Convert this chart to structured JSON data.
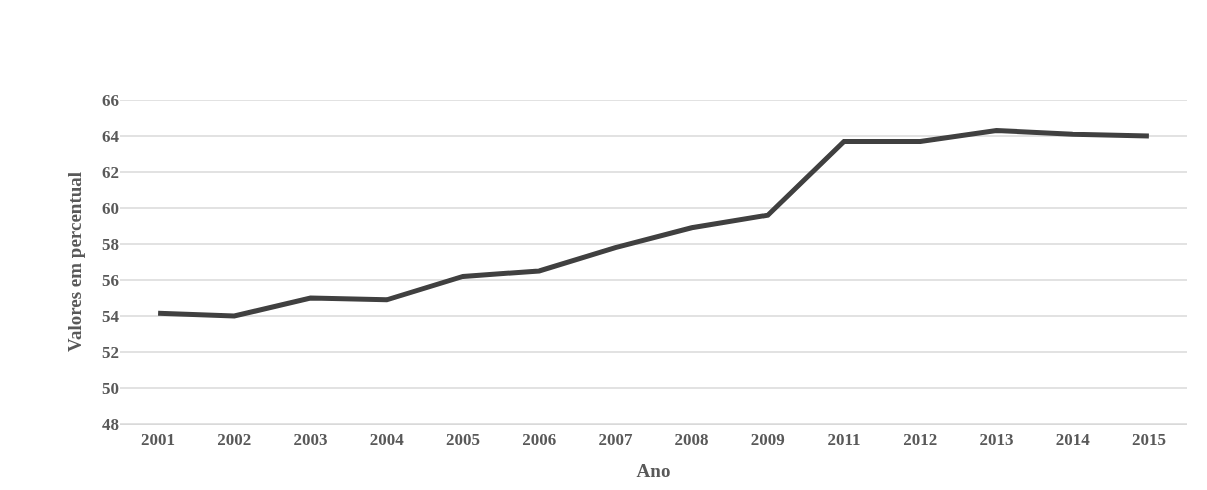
{
  "chart_data": {
    "type": "line",
    "xlabel": "Ano",
    "ylabel": "Valores em percentual",
    "categories": [
      "2001",
      "2002",
      "2003",
      "2004",
      "2005",
      "2006",
      "2007",
      "2008",
      "2009",
      "2011",
      "2012",
      "2013",
      "2014",
      "2015"
    ],
    "series": [
      {
        "color": "#404040",
        "values": [
          54.15,
          54.0,
          55.0,
          54.9,
          56.2,
          56.5,
          57.8,
          58.9,
          59.6,
          63.7,
          63.7,
          64.3,
          64.1,
          64.0
        ]
      }
    ],
    "ylim": [
      48,
      66
    ],
    "yticks": [
      48,
      50,
      52,
      54,
      56,
      58,
      60,
      62,
      64,
      66
    ],
    "grid": "y",
    "marker": "none",
    "line_style": "solid"
  }
}
